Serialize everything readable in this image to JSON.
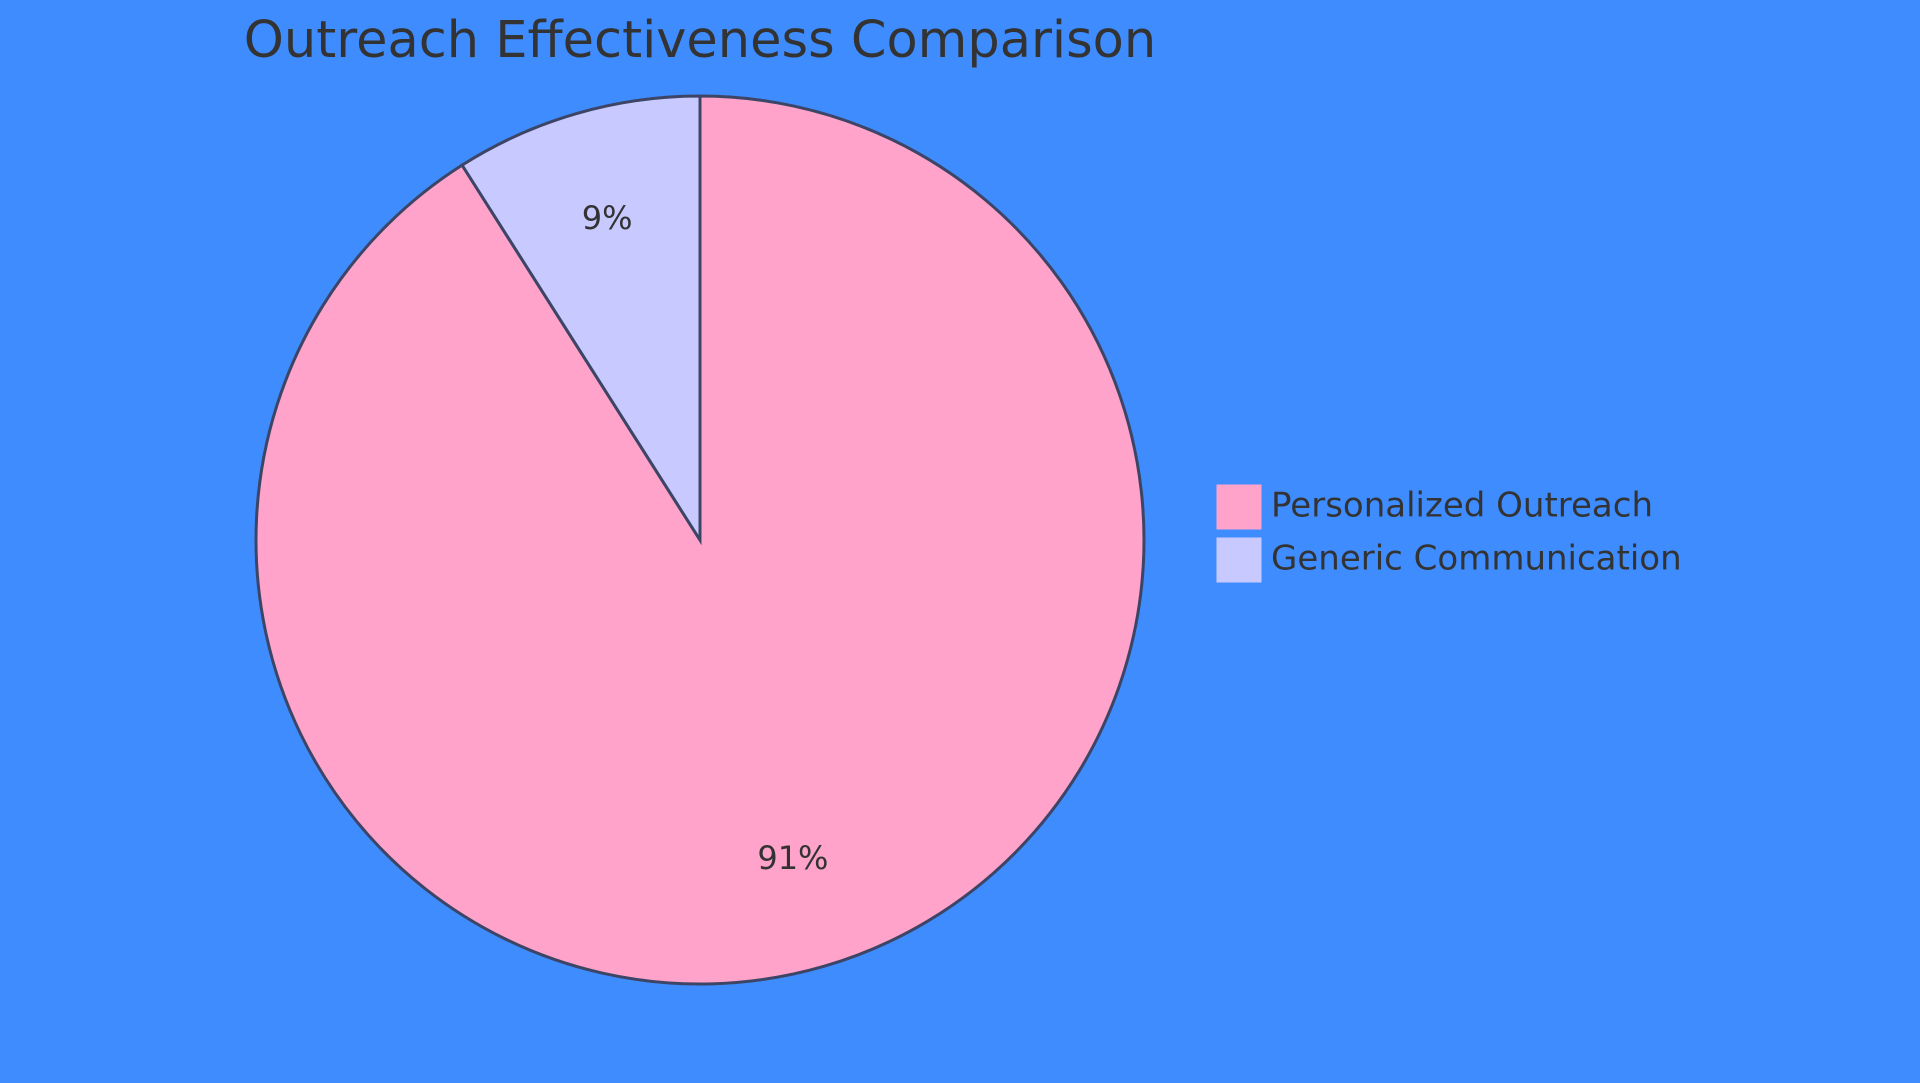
{
  "chart_data": {
    "type": "pie",
    "title": "Outreach Effectiveness Comparison",
    "slices": [
      {
        "label": "Personalized Outreach",
        "value": 91,
        "display": "91%",
        "color": "#ffa3ca"
      },
      {
        "label": "Generic Communication",
        "value": 9,
        "display": "9%",
        "color": "#c8caff"
      }
    ],
    "legend_placement": "right",
    "stroke_color": "#3d4566"
  },
  "background_color": "#3f8cff"
}
